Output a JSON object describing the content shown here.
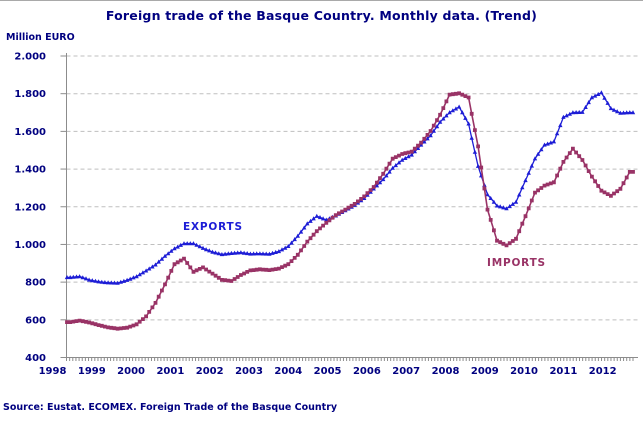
{
  "source": "Source: Eustat. ECOMEX. Foreign Trade of the Basque Country",
  "colors": {
    "exports_line": "#1d1dd6",
    "imports_line": "#993366",
    "text_navy": "#000080",
    "gridline": "#bfbfbf",
    "axis": "#8c8c8c"
  },
  "chart_data": {
    "type": "line",
    "title": "Foreign trade of the Basque Country. Monthly data. (Trend)",
    "unit_label": "Million EURO",
    "xlabel": "",
    "ylabel": "Million EURO",
    "grid": "horizontal-dashed",
    "legend": "inline-series-labels",
    "y_axis": {
      "min": 400,
      "max": 2000,
      "step": 200,
      "tick_labels": [
        "2.000",
        "1.800",
        "1.600",
        "1.400",
        "1.200",
        "1.000",
        "800",
        "600",
        "400"
      ]
    },
    "x_axis": {
      "years": [
        "1998",
        "1999",
        "2000",
        "2001",
        "2002",
        "2003",
        "2004",
        "2005",
        "2006",
        "2007",
        "2008",
        "2009",
        "2010",
        "2011",
        "2012"
      ],
      "minor_ticks": "monthly"
    },
    "sampling": "quarterly estimates (Feb/May/Aug/Nov of each year) read from the monthly trend curves",
    "series": [
      {
        "name": "EXPORTS",
        "color": "#1d1dd6",
        "marker": "triangle",
        "values": [
          825,
          830,
          812,
          802,
          797,
          795,
          810,
          830,
          860,
          892,
          938,
          978,
          1005,
          1005,
          980,
          960,
          947,
          953,
          957,
          950,
          951,
          949,
          963,
          990,
          1045,
          1110,
          1150,
          1130,
          1152,
          1180,
          1208,
          1245,
          1295,
          1345,
          1405,
          1448,
          1475,
          1528,
          1578,
          1650,
          1700,
          1730,
          1640,
          1415,
          1265,
          1205,
          1190,
          1225,
          1340,
          1455,
          1528,
          1545,
          1675,
          1700,
          1702,
          1780,
          1805,
          1722,
          1697,
          1700
        ]
      },
      {
        "name": "IMPORTS",
        "color": "#993366",
        "marker": "square",
        "values": [
          588,
          596,
          586,
          572,
          560,
          553,
          558,
          576,
          618,
          690,
          788,
          895,
          925,
          855,
          878,
          845,
          812,
          806,
          838,
          862,
          868,
          864,
          872,
          895,
          945,
          1015,
          1070,
          1115,
          1155,
          1185,
          1215,
          1255,
          1305,
          1375,
          1455,
          1480,
          1492,
          1540,
          1602,
          1688,
          1795,
          1802,
          1780,
          1520,
          1185,
          1020,
          995,
          1030,
          1150,
          1275,
          1312,
          1330,
          1438,
          1508,
          1448,
          1360,
          1285,
          1258,
          1295,
          1385
        ]
      }
    ]
  }
}
